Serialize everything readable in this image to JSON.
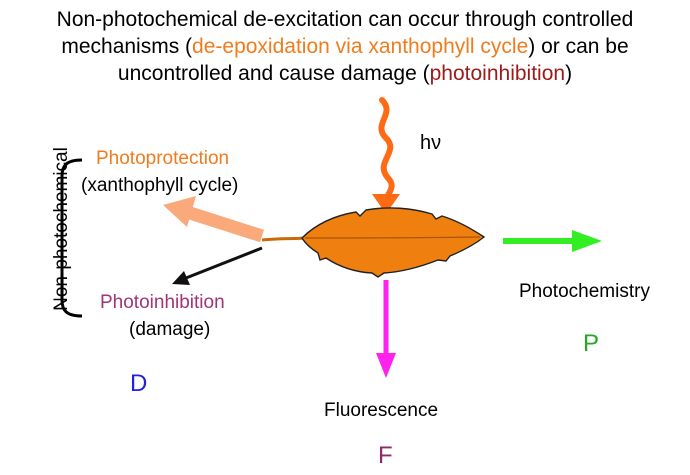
{
  "title": {
    "line1": "Non-photochemical de-excitation can occur through controlled",
    "line2_pre": "mechanisms (",
    "line2_orange": "de-epoxidation via xanthophyll cycle",
    "line2_post": ") or can be",
    "line3_pre": "uncontrolled and cause damage (",
    "line3_red": "photoinhibition",
    "line3_post": ")"
  },
  "light_label": "hν",
  "bracket_label": "Non-photochemical",
  "photoprotection": {
    "label": "Photoprotection",
    "sub": "(xanthophyll cycle)"
  },
  "photoinhibition": {
    "label": "Photoinhibition",
    "sub": "(damage)"
  },
  "fluorescence": {
    "label": "Fluorescence",
    "letter": "F"
  },
  "photochemistry": {
    "label": "Photochemistry",
    "letter": "P"
  },
  "dissipation_letter": "D",
  "colors": {
    "orange": "#f07c1e",
    "leaf": "#ef8010",
    "light_arrow": "#ff6a14",
    "photoprotection_arrow": "#f9a97a",
    "fluorescence_arrow": "#ff22ee",
    "photochemistry_arrow": "#33ee22",
    "photoinhibition_text": "#a03576",
    "letter_D": "#2222dd",
    "letter_P": "#22aa22",
    "letter_F": "#8b2c6a"
  }
}
